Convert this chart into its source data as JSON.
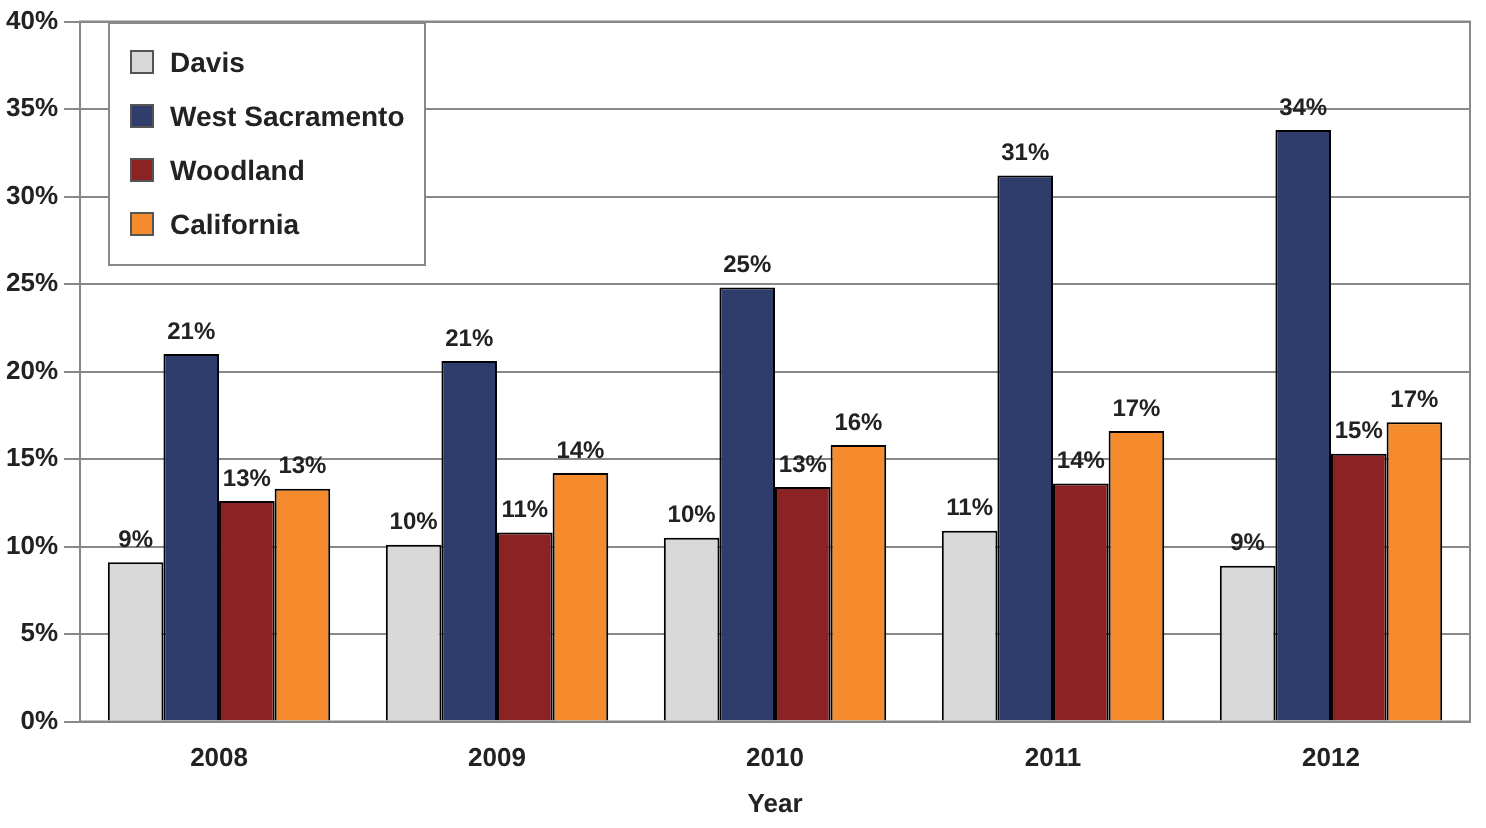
{
  "chart_data": {
    "type": "bar",
    "xlabel": "Year",
    "categories": [
      "2008",
      "2009",
      "2010",
      "2011",
      "2012"
    ],
    "series": [
      {
        "name": "Davis",
        "color": "#d9d9d9",
        "values": [
          9.1,
          10.1,
          10.5,
          10.9,
          8.9
        ],
        "value_labels": [
          "9%",
          "10%",
          "10%",
          "11%",
          "9%"
        ]
      },
      {
        "name": "West Sacramento",
        "color": "#2e3d6b",
        "values": [
          21.0,
          20.6,
          24.8,
          31.2,
          33.8
        ],
        "value_labels": [
          "21%",
          "21%",
          "25%",
          "31%",
          "34%"
        ]
      },
      {
        "name": "Woodland",
        "color": "#8b2324",
        "values": [
          12.6,
          10.8,
          13.4,
          13.6,
          15.3
        ],
        "value_labels": [
          "13%",
          "11%",
          "13%",
          "14%",
          "15%"
        ]
      },
      {
        "name": "California",
        "color": "#f58b2c",
        "values": [
          13.3,
          14.2,
          15.8,
          16.6,
          17.1
        ],
        "value_labels": [
          "13%",
          "14%",
          "16%",
          "17%",
          "17%"
        ]
      }
    ],
    "ylim": [
      0,
      40
    ],
    "yticks": [
      {
        "value": 0,
        "label": "0%"
      },
      {
        "value": 5,
        "label": "5%"
      },
      {
        "value": 10,
        "label": "10%"
      },
      {
        "value": 15,
        "label": "15%"
      },
      {
        "value": 20,
        "label": "20%"
      },
      {
        "value": 25,
        "label": "25%"
      },
      {
        "value": 30,
        "label": "30%"
      },
      {
        "value": 35,
        "label": "35%"
      },
      {
        "value": 40,
        "label": "40%"
      }
    ],
    "grid": "y",
    "legend": "top left"
  }
}
